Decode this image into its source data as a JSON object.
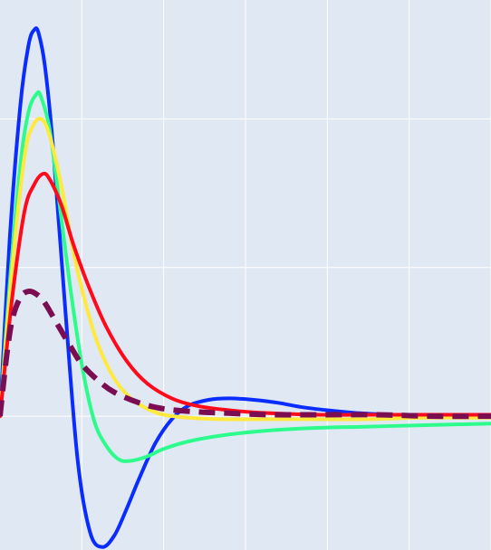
{
  "chart_data": {
    "type": "line",
    "title": "",
    "xlabel": "",
    "ylabel": "",
    "grid": true,
    "legend": "none",
    "background": "#e0e8f4",
    "grid_color": "#ffffff",
    "xlim": [
      0,
      6
    ],
    "ylim": [
      -0.9,
      2.8
    ],
    "x_gridlines": [
      1,
      2,
      3,
      4,
      5,
      6
    ],
    "y_gridlines": [
      -1,
      0,
      1,
      2
    ],
    "series": [
      {
        "color": "#0a2cff",
        "dash": "solid",
        "x": [
          0,
          0.12,
          0.25,
          0.35,
          0.42,
          0.47,
          0.55,
          0.65,
          0.8,
          0.95,
          1.1,
          1.25,
          1.4,
          1.55,
          1.7,
          1.9,
          2.1,
          2.3,
          2.55,
          2.8,
          3.1,
          3.4,
          3.7,
          4.0,
          4.4,
          4.8,
          5.3,
          6.0
        ],
        "y": [
          0,
          1.2,
          2.1,
          2.5,
          2.6,
          2.58,
          2.35,
          1.8,
          0.7,
          -0.3,
          -0.78,
          -0.88,
          -0.8,
          -0.62,
          -0.42,
          -0.18,
          -0.02,
          0.07,
          0.11,
          0.12,
          0.11,
          0.09,
          0.06,
          0.04,
          0.02,
          0.01,
          0.01,
          0.01
        ]
      },
      {
        "color": "#2dfc8c",
        "dash": "solid",
        "x": [
          0,
          0.12,
          0.25,
          0.35,
          0.45,
          0.5,
          0.6,
          0.7,
          0.85,
          1.0,
          1.15,
          1.3,
          1.45,
          1.6,
          1.8,
          2.0,
          2.3,
          2.7,
          3.2,
          3.8,
          4.5,
          5.2,
          6.0
        ],
        "y": [
          0,
          0.9,
          1.7,
          2.05,
          2.17,
          2.15,
          1.95,
          1.55,
          0.9,
          0.35,
          -0.03,
          -0.2,
          -0.29,
          -0.3,
          -0.27,
          -0.22,
          -0.17,
          -0.13,
          -0.1,
          -0.08,
          -0.07,
          -0.06,
          -0.05
        ]
      },
      {
        "color": "#ffe93d",
        "dash": "solid",
        "x": [
          0,
          0.15,
          0.3,
          0.4,
          0.5,
          0.6,
          0.75,
          0.9,
          1.05,
          1.2,
          1.4,
          1.6,
          1.8,
          2.0,
          2.3,
          2.7,
          3.2,
          3.8,
          4.5,
          5.2,
          6.0
        ],
        "y": [
          0,
          1.0,
          1.75,
          1.95,
          2.0,
          1.9,
          1.55,
          1.1,
          0.75,
          0.48,
          0.25,
          0.12,
          0.05,
          0.01,
          -0.01,
          -0.02,
          -0.02,
          -0.02,
          -0.02,
          -0.01,
          -0.01
        ]
      },
      {
        "color": "#ff0a1a",
        "dash": "solid",
        "x": [
          0,
          0.15,
          0.3,
          0.42,
          0.52,
          0.6,
          0.75,
          0.9,
          1.1,
          1.3,
          1.55,
          1.8,
          2.1,
          2.4,
          2.8,
          3.3,
          3.9,
          4.6,
          5.3,
          6.0
        ],
        "y": [
          0,
          0.8,
          1.38,
          1.56,
          1.63,
          1.6,
          1.42,
          1.15,
          0.85,
          0.6,
          0.37,
          0.22,
          0.12,
          0.07,
          0.04,
          0.02,
          0.01,
          0.01,
          0.01,
          0.01
        ],
        "width": 4
      },
      {
        "color": "#7b0d52",
        "dash": "dashed",
        "x": [
          0,
          0.08,
          0.15,
          0.25,
          0.35,
          0.45,
          0.55,
          0.7,
          0.85,
          1.0,
          1.2,
          1.4,
          1.7,
          2.0,
          2.4,
          2.8,
          3.3,
          3.9,
          4.6,
          5.3,
          6.0
        ],
        "y": [
          0,
          0.4,
          0.65,
          0.8,
          0.84,
          0.82,
          0.76,
          0.62,
          0.48,
          0.35,
          0.24,
          0.16,
          0.09,
          0.05,
          0.03,
          0.02,
          0.01,
          0.01,
          0.01,
          0.0,
          0.0
        ],
        "width": 6
      }
    ]
  }
}
